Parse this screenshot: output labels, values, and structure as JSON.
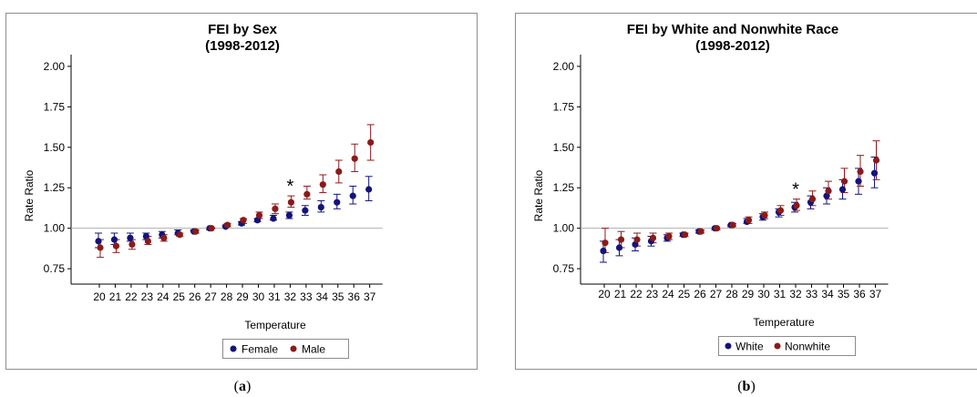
{
  "colors": {
    "series1": "#13137a",
    "series2": "#8b1a1a",
    "refline": "#b0b0b0",
    "frame": "#8c8c8c"
  },
  "chart_data": [
    {
      "type": "scatter",
      "panel_label": "(a)",
      "title": "FEI by Sex",
      "subtitle": "(1998-2012)",
      "xlabel": "Temperature",
      "ylabel": "Rate Ratio",
      "x": [
        20,
        21,
        22,
        23,
        24,
        25,
        26,
        27,
        28,
        29,
        30,
        31,
        32,
        33,
        34,
        35,
        36,
        37
      ],
      "ylim": [
        0.7,
        2.05
      ],
      "yticks": [
        "0.75",
        "1.00",
        "1.25",
        "1.50",
        "1.75",
        "2.00"
      ],
      "reference_line": 1.0,
      "legend_position": "bottom-center",
      "annotation": {
        "text": "*",
        "x": 32
      },
      "series": [
        {
          "name": "Female",
          "values": [
            0.92,
            0.93,
            0.94,
            0.95,
            0.96,
            0.97,
            0.98,
            1.0,
            1.01,
            1.03,
            1.05,
            1.06,
            1.08,
            1.11,
            1.13,
            1.16,
            1.2,
            1.24
          ],
          "lower": [
            0.88,
            0.9,
            0.92,
            0.93,
            0.94,
            0.96,
            0.98,
            0.99,
            1.01,
            1.02,
            1.04,
            1.05,
            1.06,
            1.08,
            1.1,
            1.12,
            1.15,
            1.17
          ],
          "upper": [
            0.97,
            0.97,
            0.97,
            0.97,
            0.98,
            0.99,
            0.99,
            1.0,
            1.02,
            1.04,
            1.06,
            1.08,
            1.1,
            1.14,
            1.17,
            1.21,
            1.26,
            1.32
          ]
        },
        {
          "name": "Male",
          "values": [
            0.88,
            0.89,
            0.9,
            0.92,
            0.94,
            0.96,
            0.98,
            1.0,
            1.02,
            1.05,
            1.08,
            1.12,
            1.16,
            1.21,
            1.27,
            1.35,
            1.43,
            1.53
          ],
          "lower": [
            0.82,
            0.85,
            0.87,
            0.9,
            0.92,
            0.95,
            0.97,
            1.0,
            1.01,
            1.03,
            1.06,
            1.09,
            1.13,
            1.18,
            1.22,
            1.28,
            1.35,
            1.42
          ],
          "upper": [
            0.93,
            0.93,
            0.93,
            0.95,
            0.96,
            0.97,
            0.99,
            1.0,
            1.03,
            1.06,
            1.1,
            1.15,
            1.2,
            1.26,
            1.33,
            1.42,
            1.52,
            1.64
          ]
        }
      ]
    },
    {
      "type": "scatter",
      "panel_label": "(b)",
      "title": "FEI by White and Nonwhite Race",
      "subtitle": "(1998-2012)",
      "xlabel": "Temperature",
      "ylabel": "Rate Ratio",
      "x": [
        20,
        21,
        22,
        23,
        24,
        25,
        26,
        27,
        28,
        29,
        30,
        31,
        32,
        33,
        34,
        35,
        36,
        37
      ],
      "ylim": [
        0.7,
        2.05
      ],
      "yticks": [
        "0.75",
        "1.00",
        "1.25",
        "1.50",
        "1.75",
        "2.00"
      ],
      "reference_line": 1.0,
      "legend_position": "bottom-center",
      "annotation": {
        "text": "*",
        "x": 32
      },
      "series": [
        {
          "name": "White",
          "values": [
            0.86,
            0.88,
            0.9,
            0.92,
            0.94,
            0.96,
            0.98,
            1.0,
            1.02,
            1.04,
            1.07,
            1.1,
            1.13,
            1.16,
            1.2,
            1.24,
            1.29,
            1.34
          ],
          "lower": [
            0.79,
            0.83,
            0.86,
            0.89,
            0.92,
            0.95,
            0.97,
            0.99,
            1.01,
            1.03,
            1.05,
            1.07,
            1.1,
            1.12,
            1.15,
            1.18,
            1.21,
            1.25
          ],
          "upper": [
            0.92,
            0.93,
            0.94,
            0.95,
            0.96,
            0.97,
            0.99,
            1.0,
            1.02,
            1.06,
            1.09,
            1.12,
            1.16,
            1.2,
            1.25,
            1.3,
            1.37,
            1.44
          ]
        },
        {
          "name": "Nonwhite",
          "values": [
            0.91,
            0.93,
            0.93,
            0.94,
            0.95,
            0.96,
            0.98,
            1.0,
            1.02,
            1.05,
            1.08,
            1.11,
            1.14,
            1.18,
            1.23,
            1.29,
            1.35,
            1.42
          ],
          "lower": [
            0.85,
            0.88,
            0.89,
            0.91,
            0.93,
            0.95,
            0.97,
            0.99,
            1.01,
            1.03,
            1.06,
            1.08,
            1.11,
            1.14,
            1.18,
            1.22,
            1.26,
            1.3
          ],
          "upper": [
            1.0,
            0.98,
            0.97,
            0.97,
            0.97,
            0.97,
            0.99,
            1.0,
            1.03,
            1.07,
            1.1,
            1.14,
            1.18,
            1.23,
            1.29,
            1.37,
            1.45,
            1.54
          ]
        }
      ]
    }
  ]
}
